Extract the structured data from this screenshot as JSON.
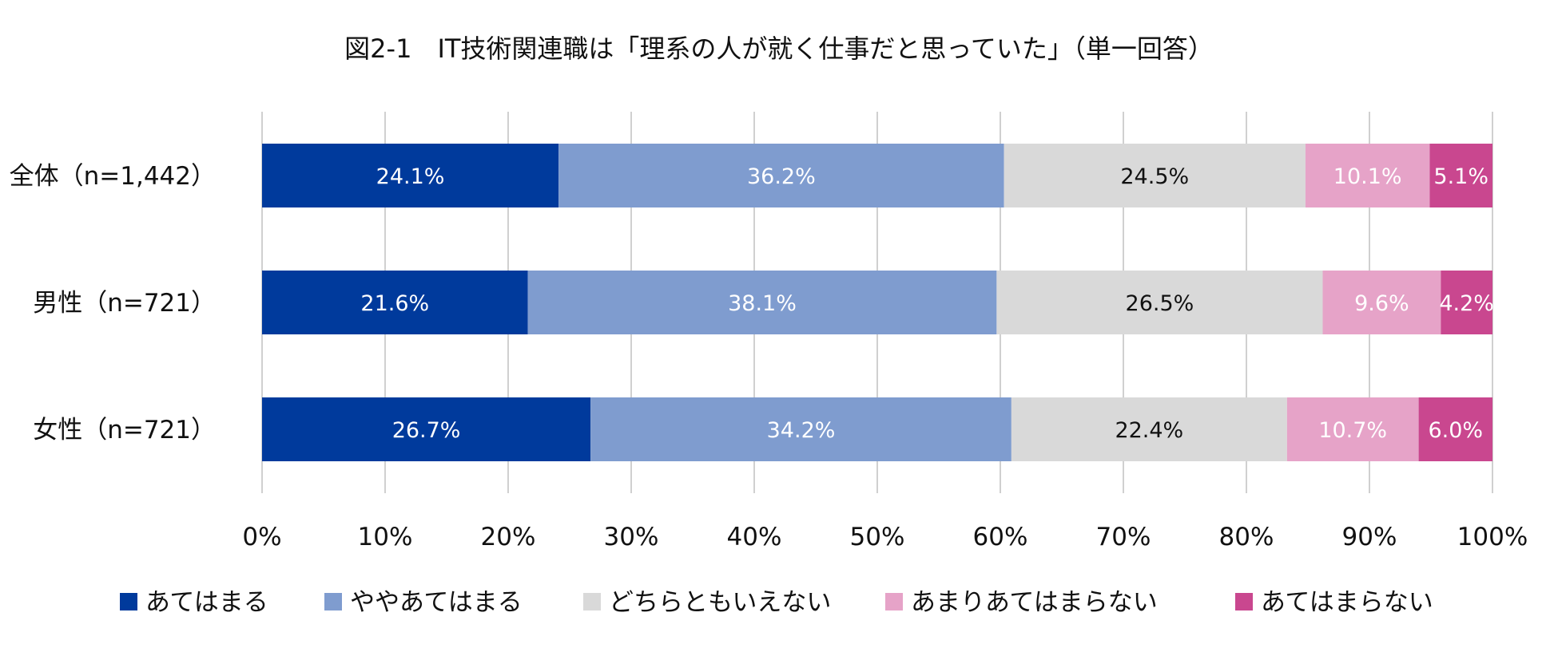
{
  "chart_data": {
    "type": "bar",
    "orientation": "horizontal",
    "stacked": true,
    "title": "図2-1　IT技術関連職は「理系の人が就く仕事だと思っていた」（単一回答）",
    "categories": [
      "全体（n=1,442）",
      "男性（n=721）",
      "女性（n=721）"
    ],
    "series": [
      {
        "name": "あてはまる",
        "color": "#003a9c",
        "label_color": "#ffffff",
        "values": [
          24.1,
          21.6,
          26.7
        ]
      },
      {
        "name": "ややあてはまる",
        "color": "#7f9ccf",
        "label_color": "#ffffff",
        "values": [
          36.2,
          38.1,
          34.2
        ]
      },
      {
        "name": "どちらともいえない",
        "color": "#d9d9d9",
        "label_color": "#111111",
        "values": [
          24.5,
          26.5,
          22.4
        ]
      },
      {
        "name": "あまりあてはまらない",
        "color": "#e6a3c8",
        "label_color": "#ffffff",
        "values": [
          10.1,
          9.6,
          10.7
        ]
      },
      {
        "name": "あてはまらない",
        "color": "#c9478f",
        "label_color": "#ffffff",
        "values": [
          5.1,
          4.2,
          6.0
        ]
      }
    ],
    "xlim": [
      0,
      100
    ],
    "xticks": [
      "0%",
      "10%",
      "20%",
      "30%",
      "40%",
      "50%",
      "60%",
      "70%",
      "80%",
      "90%",
      "100%"
    ],
    "xlabel": "",
    "ylabel": "",
    "grid": "vertical",
    "legend": "bottom"
  }
}
